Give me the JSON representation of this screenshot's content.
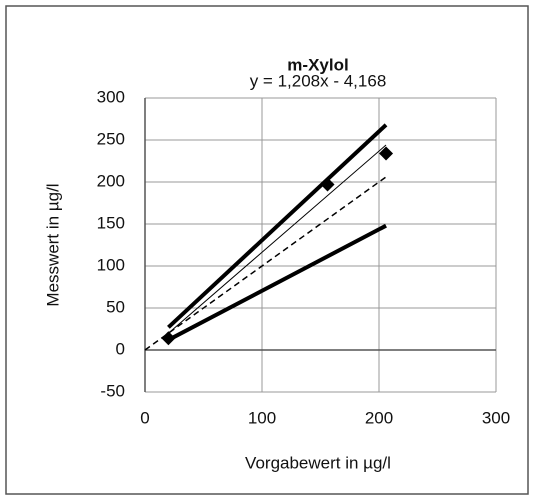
{
  "chart_data": {
    "type": "scatter",
    "title": "m-Xylol",
    "subtitle": "y = 1,208x - 4,168",
    "x_label": "Vorgabewert in µg/l",
    "y_label": "Messwert in µg/l",
    "xlim": [
      0,
      300
    ],
    "xticks": [
      0,
      100,
      200,
      300
    ],
    "ylim": [
      -50,
      300
    ],
    "yticks": [
      -50,
      0,
      50,
      100,
      150,
      200,
      250,
      300
    ],
    "grid": true,
    "series": [
      {
        "style": "line",
        "color": "#000000",
        "line_width": 4,
        "x": [
          20,
          206
        ],
        "values": [
          27,
          268
        ]
      },
      {
        "style": "line",
        "color": "#000000",
        "line_width": 4,
        "x": [
          20,
          206
        ],
        "values": [
          12,
          148
        ]
      },
      {
        "style": "line",
        "color": "#000000",
        "line_width": 1,
        "x": [
          20,
          206
        ],
        "values": [
          20,
          244
        ]
      },
      {
        "style": "dashed",
        "color": "#000000",
        "line_width": 1.5,
        "x": [
          0,
          206
        ],
        "values": [
          0,
          206
        ]
      },
      {
        "style": "markers",
        "marker": "diamond",
        "color": "#000000",
        "x": [
          20,
          156,
          206
        ],
        "values": [
          14,
          197,
          234
        ]
      }
    ]
  }
}
